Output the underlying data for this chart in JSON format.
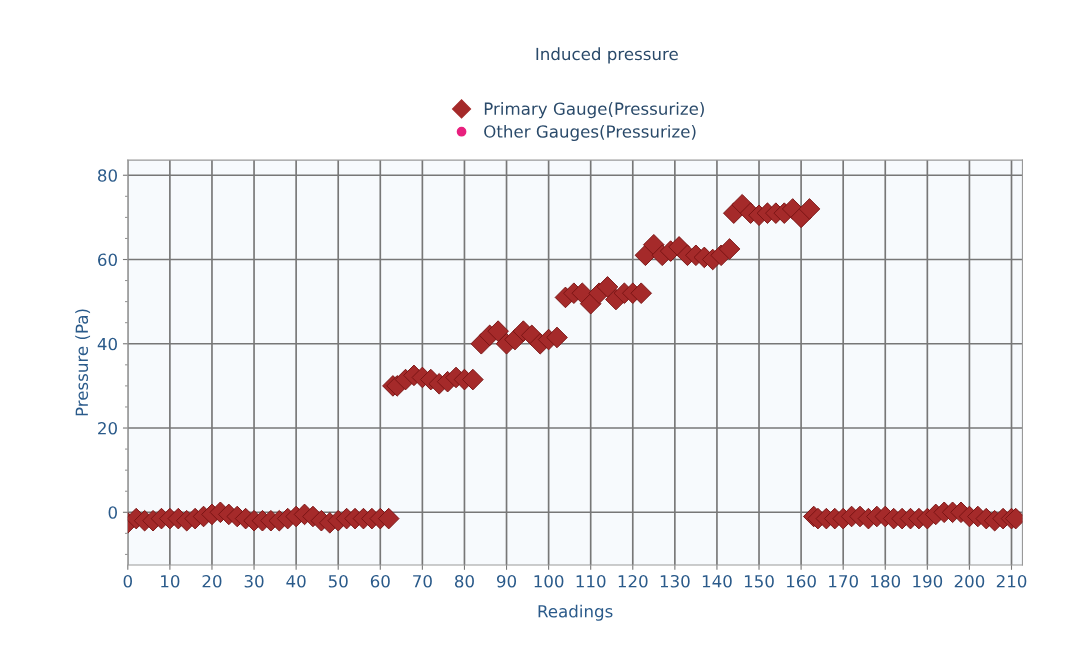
{
  "chart_data": {
    "type": "scatter",
    "title": "Induced pressure",
    "xlabel": "Readings",
    "ylabel": "Pressure (Pa)",
    "xlim": [
      0,
      212.6
    ],
    "ylim": [
      -12.5,
      83.6
    ],
    "xticks": [
      0,
      10,
      20,
      30,
      40,
      50,
      60,
      70,
      80,
      90,
      100,
      110,
      120,
      130,
      140,
      150,
      160,
      170,
      180,
      190,
      200,
      210
    ],
    "yticks": [
      {
        "value": -10,
        "label": null
      },
      0,
      {
        "value": 5,
        "label": null
      },
      {
        "value": 10,
        "label": null
      },
      {
        "value": 15,
        "label": null
      },
      20,
      {
        "value": 25,
        "label": null
      },
      {
        "value": 30,
        "label": null
      },
      {
        "value": 35,
        "label": null
      },
      40,
      {
        "value": 45,
        "label": null
      },
      {
        "value": 50,
        "label": null
      },
      {
        "value": 55,
        "label": null
      },
      60,
      {
        "value": 65,
        "label": null
      },
      {
        "value": 70,
        "label": null
      },
      {
        "value": 75,
        "label": null
      },
      80,
      {
        "value": -5,
        "label": null
      }
    ],
    "grid": true,
    "legend": "top",
    "series": [
      {
        "name": "Primary Gauge(Pressurize)",
        "color": "#a52a2a",
        "marker": "diamond",
        "x": [
          0,
          2,
          4,
          6,
          8,
          10,
          12,
          14,
          16,
          18,
          20,
          22,
          24,
          26,
          28,
          30,
          32,
          34,
          36,
          38,
          40,
          42,
          44,
          46,
          48,
          50,
          52,
          54,
          56,
          58,
          60,
          62,
          63,
          64,
          66,
          68,
          70,
          72,
          74,
          76,
          78,
          80,
          82,
          84,
          86,
          88,
          90,
          92,
          94,
          96,
          98,
          100,
          102,
          104,
          106,
          108,
          110,
          112,
          114,
          116,
          118,
          120,
          122,
          123,
          125,
          127,
          129,
          131,
          133,
          135,
          137,
          139,
          141,
          143,
          144,
          146,
          148,
          150,
          152,
          154,
          156,
          158,
          160,
          162,
          163,
          164,
          166,
          168,
          170,
          172,
          174,
          176,
          178,
          180,
          182,
          184,
          186,
          188,
          190,
          192,
          194,
          196,
          198,
          200,
          202,
          204,
          206,
          208,
          210,
          211
        ],
        "values": [
          -2.5,
          -1.5,
          -2,
          -2,
          -1.5,
          -1.5,
          -1.5,
          -2,
          -1.5,
          -1,
          -0.5,
          0,
          -0.5,
          -1,
          -1.5,
          -2,
          -2,
          -2,
          -2,
          -1.5,
          -1,
          -0.5,
          -1,
          -2,
          -2.5,
          -2,
          -1.5,
          -1.5,
          -1.5,
          -1.5,
          -1.5,
          -1.5,
          30,
          30,
          31.5,
          32.5,
          32,
          31.5,
          30.5,
          31,
          32,
          31.5,
          31.5,
          40,
          42,
          43,
          40,
          41,
          43,
          42,
          40,
          41,
          41.5,
          51,
          52,
          52,
          49.5,
          52,
          53.5,
          50.5,
          52,
          52,
          52,
          61,
          63.5,
          61,
          62,
          63,
          61,
          61,
          60.5,
          60,
          61,
          62.5,
          71,
          73,
          71,
          70.5,
          71,
          71,
          71,
          72,
          70,
          72,
          -1,
          -1.5,
          -1.5,
          -1.5,
          -1.5,
          -1,
          -1,
          -1.5,
          -1,
          -1,
          -1.5,
          -1.5,
          -1.5,
          -1.5,
          -1.5,
          -0.5,
          0,
          0,
          0,
          -1,
          -1,
          -1.5,
          -2,
          -1.5,
          -1.5,
          -1.5
        ]
      },
      {
        "name": "Other Gauges(Pressurize)",
        "color": "#e8207e",
        "marker": "circle"
      }
    ]
  }
}
